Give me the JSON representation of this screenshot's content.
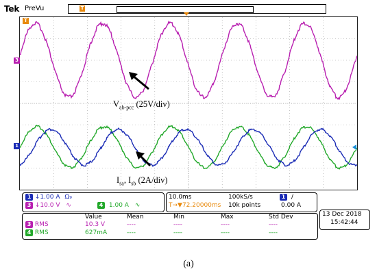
{
  "header": {
    "brand": "Tek",
    "mode": "PreVu",
    "trigger_position_label": "T"
  },
  "channels": {
    "ch1_marker": "1",
    "ch3_marker": "3",
    "ch4_marker": "4",
    "trigger_marker": "T"
  },
  "annotations": {
    "voltage_main": "V",
    "voltage_sub": "ab-pcc",
    "voltage_scale": " (25V/div)",
    "current_main_1": "I",
    "current_sub_1": "sa",
    "current_sep": ", I",
    "current_sub_2": "sb",
    "current_scale": " (2A/div)"
  },
  "settings": {
    "ch1_num": "1",
    "ch1_scale": "↓1.00 A",
    "ch1_coupling": "Ω₉",
    "ch3_num": "3",
    "ch3_scale": "↓10.0 V",
    "ch3_wave": "∿",
    "ch4_num": "4",
    "ch4_scale": "1.00 A",
    "ch4_wave": "∿",
    "timebase": "10.0ms",
    "sample_rate": "100kS/s",
    "trigger_channel": "1",
    "trigger_slope": "∕",
    "trigger_delay": "T→▼72.20000ms",
    "record_length": "10k points",
    "trigger_level": "0.00 A"
  },
  "measurements": {
    "headers": [
      "Value",
      "Mean",
      "Min",
      "Max",
      "Std Dev"
    ],
    "rows": [
      {
        "channel": "3",
        "label": "RMS",
        "value": "10.3 V",
        "mean": "----",
        "min": "----",
        "max": "----",
        "std": "----"
      },
      {
        "channel": "4",
        "label": "RMS",
        "value": "627mA",
        "mean": "----",
        "min": "----",
        "max": "----",
        "std": "----"
      }
    ]
  },
  "datetime": {
    "date": "13 Dec 2018",
    "time": "15:42:44"
  },
  "caption": "(a)",
  "colors": {
    "ch1": "#1a2bb5",
    "ch3": "#b81fb0",
    "ch4": "#22a82a",
    "trigger": "#e8890c"
  },
  "waveforms": {
    "voltage": {
      "channel": "3",
      "cycles": 5
    },
    "current_a": {
      "channel": "1",
      "cycles": 5
    },
    "current_b": {
      "channel": "4",
      "cycles": 5
    }
  }
}
